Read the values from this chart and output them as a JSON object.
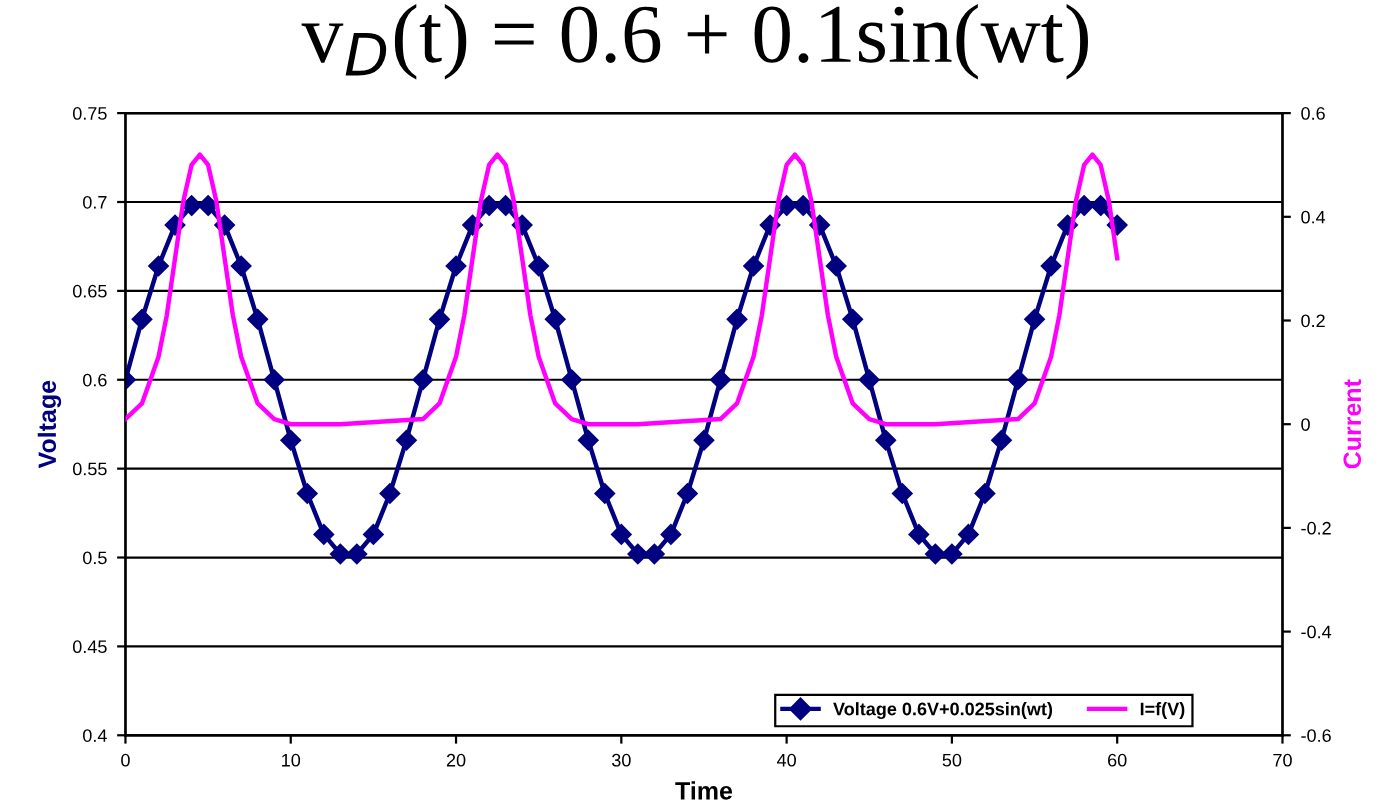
{
  "chart_data": {
    "type": "line",
    "title": "v$_{D}$(t) = 0.6 + 0.1sin(wt)",
    "xlabel": "Time",
    "ylabel": "Voltage",
    "y2label": "Current",
    "xlim": [
      0,
      70
    ],
    "xticks": [
      0,
      10,
      20,
      30,
      40,
      50,
      60,
      70
    ],
    "ylim": [
      0.4,
      0.75
    ],
    "yticks": [
      0.4,
      0.45,
      0.5,
      0.55,
      0.6,
      0.65,
      0.7,
      0.75
    ],
    "y2lim": [
      -0.6,
      0.6
    ],
    "y2ticks": [
      -0.6,
      -0.4,
      -0.2,
      0,
      0.2,
      0.4,
      0.6
    ],
    "grid": "y",
    "legend": "bottom right",
    "series": [
      {
        "name": "Voltage 0.6V+0.025sin(wt)",
        "color": "#000080",
        "marker": "diamond",
        "x": [
          0,
          1,
          2,
          3,
          4,
          5,
          6,
          7,
          8,
          9,
          10,
          11,
          12,
          13,
          14,
          15,
          16,
          17,
          18,
          19,
          20,
          21,
          22,
          23,
          24,
          25,
          26,
          27,
          28,
          29,
          30,
          31,
          32,
          33,
          34,
          35,
          36,
          37,
          38,
          39,
          40,
          41,
          42,
          43,
          44,
          45,
          46,
          47,
          48,
          49,
          50,
          51,
          52,
          53,
          54,
          55,
          56,
          57,
          58,
          59,
          60
        ],
        "values": [
          0.6,
          0.634,
          0.664,
          0.687,
          0.698,
          0.698,
          0.687,
          0.664,
          0.634,
          0.6,
          0.566,
          0.536,
          0.513,
          0.502,
          0.502,
          0.513,
          0.536,
          0.566,
          0.6,
          0.634,
          0.664,
          0.687,
          0.698,
          0.698,
          0.687,
          0.664,
          0.634,
          0.6,
          0.566,
          0.536,
          0.513,
          0.502,
          0.502,
          0.513,
          0.536,
          0.566,
          0.6,
          0.634,
          0.664,
          0.687,
          0.698,
          0.698,
          0.687,
          0.664,
          0.634,
          0.6,
          0.566,
          0.536,
          0.513,
          0.502,
          0.502,
          0.513,
          0.536,
          0.566,
          0.6,
          0.634,
          0.664,
          0.687,
          0.698,
          0.698,
          0.687
        ]
      },
      {
        "name": "I=f(V)",
        "color": "#ff00ff",
        "axis": "y2",
        "marker": "none",
        "x": [
          0,
          1,
          2,
          2.5,
          3,
          3.5,
          4,
          4.5,
          5,
          5.5,
          6,
          6.5,
          7,
          8,
          9,
          10,
          13,
          18,
          19,
          20,
          20.5,
          21,
          21.5,
          22,
          22.5,
          23,
          23.5,
          24,
          24.5,
          25,
          26,
          27,
          28,
          31,
          36,
          37,
          38,
          38.5,
          39,
          39.5,
          40,
          40.5,
          41,
          41.5,
          42,
          42.5,
          43,
          44,
          45,
          46,
          49,
          54,
          55,
          56,
          56.5,
          57,
          57.5,
          58,
          58.5,
          59,
          59.5,
          60
        ],
        "values": [
          0.01,
          0.04,
          0.13,
          0.21,
          0.32,
          0.43,
          0.5,
          0.52,
          0.5,
          0.43,
          0.32,
          0.21,
          0.13,
          0.04,
          0.01,
          0,
          0,
          0.01,
          0.04,
          0.13,
          0.21,
          0.32,
          0.43,
          0.5,
          0.52,
          0.5,
          0.43,
          0.32,
          0.21,
          0.13,
          0.04,
          0.01,
          0,
          0,
          0.01,
          0.04,
          0.13,
          0.21,
          0.32,
          0.43,
          0.5,
          0.52,
          0.5,
          0.43,
          0.32,
          0.21,
          0.13,
          0.04,
          0.01,
          0,
          0,
          0.01,
          0.04,
          0.13,
          0.21,
          0.32,
          0.43,
          0.5,
          0.52,
          0.5,
          0.43,
          0.32
        ]
      }
    ]
  }
}
